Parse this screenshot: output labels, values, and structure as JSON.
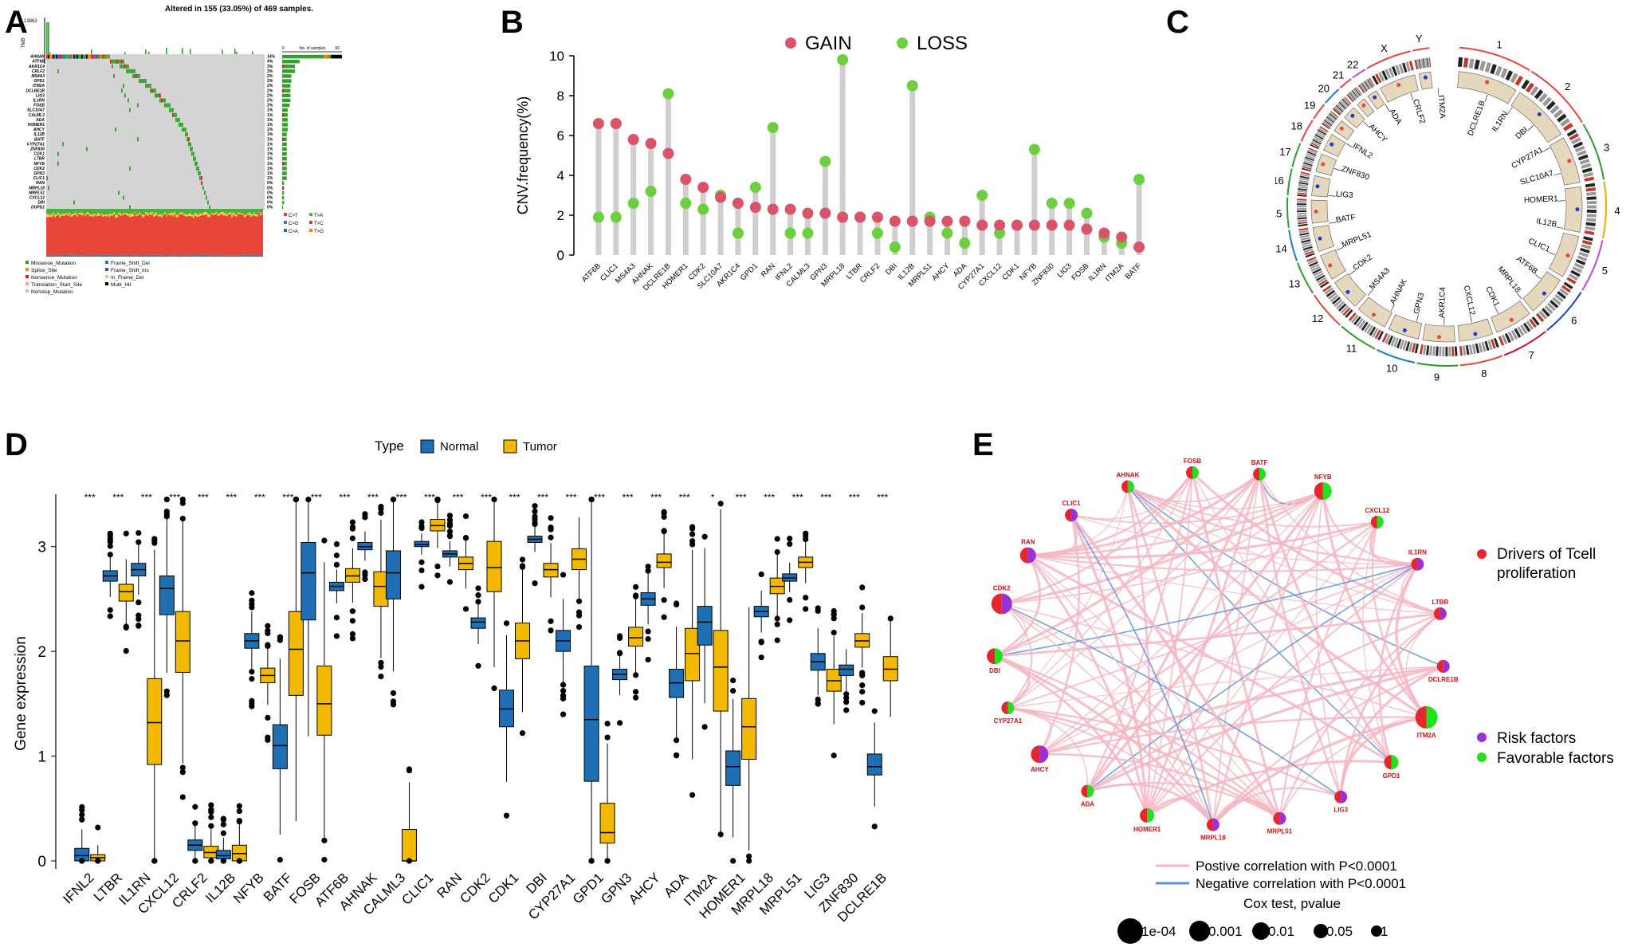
{
  "panels": {
    "a": {
      "letter": "A",
      "title": "Altered in 155 (33.05%) of 469 samples.",
      "tmb_max": "13862",
      "tmb_label": "TMB",
      "samples_label": "No. of samples",
      "samples_max": "65",
      "samples_zero": "0",
      "genes": [
        "AHNAK",
        "ATF6B",
        "AKR1C4",
        "CRLF2",
        "MS4A3",
        "GPD1",
        "ITM2A",
        "DCLRE1B",
        "LIG3",
        "IL1RN",
        "FOSB",
        "SLC10A7",
        "CALML3",
        "ADA",
        "HOMER1",
        "AHCY",
        "IL12B",
        "BATF",
        "CYP27A1",
        "ZNF830",
        "CDK1",
        "LTBR",
        "NFYB",
        "CDK2",
        "GPN3",
        "CLIC1",
        "RAN",
        "MRPL18",
        "MRPL51",
        "CXCL12",
        "DBI",
        "DUPD1"
      ],
      "percents": [
        "14%",
        "4%",
        "3%",
        "3%",
        "2%",
        "2%",
        "2%",
        "2%",
        "2%",
        "2%",
        "2%",
        "1%",
        "1%",
        "1%",
        "1%",
        "1%",
        "1%",
        "1%",
        "1%",
        "1%",
        "1%",
        "1%",
        "1%",
        "1%",
        "1%",
        "1%",
        "0%",
        "0%",
        "0%",
        "0%",
        "0%",
        "0%"
      ],
      "bar_counts": [
        65,
        19,
        14,
        14,
        10,
        10,
        9,
        9,
        9,
        9,
        8,
        6,
        6,
        6,
        6,
        6,
        5,
        5,
        5,
        5,
        5,
        5,
        5,
        5,
        5,
        5,
        2,
        2,
        2,
        2,
        2,
        1
      ],
      "snv_legend": [
        {
          "label": "C>T",
          "color": "#e8463a"
        },
        {
          "label": "T>A",
          "color": "#4daf4a"
        },
        {
          "label": "C>G",
          "color": "#377eb8"
        },
        {
          "label": "T>C",
          "color": "#a65628"
        },
        {
          "label": "C>A",
          "color": "#2b6cb0"
        },
        {
          "label": "T>G",
          "color": "#ff7f00"
        }
      ],
      "variant_legend": [
        {
          "label": "Missense_Mutation",
          "color": "#33a02c"
        },
        {
          "label": "Frame_Shift_Del",
          "color": "#1f78b4"
        },
        {
          "label": "Splice_Site",
          "color": "#ff7f00"
        },
        {
          "label": "Frame_Shift_Ins",
          "color": "#6a3d9a"
        },
        {
          "label": "Nonsense_Mutation",
          "color": "#e31a1c"
        },
        {
          "label": "In_Frame_Del",
          "color": "#fdbf6f"
        },
        {
          "label": "Translation_Start_Site",
          "color": "#fb9a99"
        },
        {
          "label": "Multi_Hit",
          "color": "#000000"
        },
        {
          "label": "Nonstop_Mutation",
          "color": "#a6cee3"
        }
      ]
    },
    "b": {
      "letter": "B",
      "legend_gain": "GAIN",
      "legend_loss": "LOSS",
      "gain_color": "#d9536a",
      "loss_color": "#6ccf3e"
    },
    "c": {
      "letter": "C",
      "chromosomes": [
        "1",
        "2",
        "3",
        "4",
        "5",
        "6",
        "7",
        "8",
        "9",
        "10",
        "11",
        "12",
        "13",
        "14",
        "15",
        "16",
        "17",
        "18",
        "19",
        "20",
        "21",
        "22",
        "X",
        "Y"
      ],
      "gene_labels": [
        "DCLRE1B",
        "IL1RN",
        "DBI",
        "CYP27A1",
        "SLC10A7",
        "HOMER1",
        "IL12B",
        "CLIC1",
        "ATF6B",
        "MRPL18",
        "CDK1",
        "CXCL12",
        "AKR1C4",
        "GPN3",
        "AHNAK",
        "MS4A3",
        "CDK2",
        "MRPL51",
        "BATF",
        "LIG3",
        "ZNF830",
        "IFNL2",
        "AHCY",
        "ADA",
        "CRLF2",
        "ITM2A"
      ]
    },
    "d": {
      "letter": "D",
      "legend_title": "Type",
      "legend_normal": "Normal",
      "legend_tumor": "Tumor",
      "normal_color": "#1f6fb4",
      "tumor_color": "#f2b900",
      "sig_label": "***",
      "special_sig": "*"
    },
    "e": {
      "letter": "E",
      "legend_drivers": "Drivers of Tcell proliferation",
      "legend_risk": "Risk factors",
      "legend_favorable": "Favorable factors",
      "pos_corr": "Postive correlation with P<0.0001",
      "neg_corr": "Negative correlation with P<0.0001",
      "cox_title": "Cox test, pvalue",
      "cox_values": [
        "1e-04",
        "0.001",
        "0.01",
        "0.05",
        "1"
      ],
      "driver_color": "#e8252a",
      "risk_color": "#9b30d9",
      "favorable_color": "#22e020",
      "pos_color": "#f4b6c2",
      "neg_color": "#5b8fd8",
      "nodes": [
        {
          "name": "AHNAK",
          "risk": false
        },
        {
          "name": "FOSB",
          "risk": false
        },
        {
          "name": "BATF",
          "risk": false
        },
        {
          "name": "NFYB",
          "risk": false
        },
        {
          "name": "CXCL12",
          "risk": false
        },
        {
          "name": "IL1RN",
          "risk": true
        },
        {
          "name": "LTBR",
          "risk": true
        },
        {
          "name": "DCLRE1B",
          "risk": true
        },
        {
          "name": "ITM2A",
          "risk": false
        },
        {
          "name": "GPD1",
          "risk": false
        },
        {
          "name": "LIG3",
          "risk": true
        },
        {
          "name": "MRPL51",
          "risk": true
        },
        {
          "name": "MRPL18",
          "risk": true
        },
        {
          "name": "HOMER1",
          "risk": false
        },
        {
          "name": "ADA",
          "risk": false
        },
        {
          "name": "AHCY",
          "risk": true
        },
        {
          "name": "CYP27A1",
          "risk": false
        },
        {
          "name": "DBI",
          "risk": false
        },
        {
          "name": "CDK2",
          "risk": true
        },
        {
          "name": "RAN",
          "risk": true
        },
        {
          "name": "CLIC1",
          "risk": true
        }
      ]
    }
  },
  "chart_data": [
    {
      "type": "bar",
      "title": "Altered in 155 (33.05%) of 469 samples.",
      "categories": [
        "AHNAK",
        "ATF6B",
        "AKR1C4",
        "CRLF2",
        "MS4A3",
        "GPD1",
        "ITM2A",
        "DCLRE1B",
        "LIG3",
        "IL1RN",
        "FOSB",
        "SLC10A7",
        "CALML3",
        "ADA",
        "HOMER1",
        "AHCY",
        "IL12B",
        "BATF",
        "CYP27A1",
        "ZNF830",
        "CDK1",
        "LTBR",
        "NFYB",
        "CDK2",
        "GPN3",
        "CLIC1",
        "RAN",
        "MRPL18",
        "MRPL51",
        "CXCL12",
        "DBI",
        "DUPD1"
      ],
      "values": [
        65,
        19,
        14,
        14,
        10,
        10,
        9,
        9,
        9,
        9,
        8,
        6,
        6,
        6,
        6,
        6,
        5,
        5,
        5,
        5,
        5,
        5,
        5,
        5,
        5,
        5,
        2,
        2,
        2,
        2,
        2,
        1
      ],
      "xlabel": "No. of samples",
      "xlim": [
        0,
        65
      ]
    },
    {
      "type": "scatter",
      "categories": [
        "ATF6B",
        "CLIC1",
        "MS4A3",
        "AHNAK",
        "DCLRE1B",
        "HOMER1",
        "CDK2",
        "SLC10A7",
        "AKR1C4",
        "GPD1",
        "RAN",
        "IFNL2",
        "CALML3",
        "GPN3",
        "MRPL18",
        "LTBR",
        "CRLF2",
        "DBI",
        "IL12B",
        "MRPL51",
        "AHCY",
        "ADA",
        "CYP27A1",
        "CXCL12",
        "CDK1",
        "NFYB",
        "ZNF830",
        "LIG3",
        "FOSB",
        "IL1RN",
        "ITM2A",
        "BATF"
      ],
      "series": [
        {
          "name": "GAIN",
          "values": [
            6.6,
            6.6,
            5.8,
            5.6,
            5.1,
            3.8,
            3.4,
            2.9,
            2.6,
            2.4,
            2.3,
            2.3,
            2.1,
            2.1,
            1.9,
            1.9,
            1.9,
            1.7,
            1.7,
            1.7,
            1.7,
            1.7,
            1.5,
            1.5,
            1.5,
            1.5,
            1.5,
            1.5,
            1.3,
            1.1,
            0.9,
            0.4
          ]
        },
        {
          "name": "LOSS",
          "values": [
            1.9,
            1.9,
            2.6,
            3.2,
            8.1,
            2.6,
            2.3,
            3.0,
            1.1,
            3.4,
            6.4,
            1.1,
            1.1,
            4.7,
            9.8,
            1.9,
            1.1,
            0.4,
            8.5,
            1.9,
            1.1,
            0.6,
            3.0,
            1.1,
            1.5,
            5.3,
            2.6,
            2.6,
            2.1,
            0.9,
            0.6,
            3.8
          ]
        }
      ],
      "ylabel": "CNV.frequency(%)",
      "ylim": [
        0,
        10
      ],
      "yticks": [
        0,
        2,
        4,
        6,
        8,
        10
      ],
      "grid": false
    },
    {
      "type": "box",
      "categories": [
        "IFNL2",
        "LTBR",
        "IL1RN",
        "CXCL12",
        "CRLF2",
        "IL12B",
        "NFYB",
        "BATF",
        "FOSB",
        "ATF6B",
        "AHNAK",
        "CALML3",
        "CLIC1",
        "RAN",
        "CDK2",
        "CDK1",
        "DBI",
        "CYP27A1",
        "GPD1",
        "GPN3",
        "AHCY",
        "ADA",
        "ITM2A",
        "HOMER1",
        "MRPL18",
        "MRPL51",
        "LIG3",
        "ZNF830",
        "DCLRE1B"
      ],
      "series": [
        {
          "name": "Normal",
          "medians": [
            0.05,
            2.72,
            2.78,
            2.6,
            0.15,
            0.05,
            2.1,
            1.1,
            2.75,
            2.62,
            3.0,
            2.75,
            3.02,
            2.93,
            2.28,
            1.45,
            3.07,
            2.1,
            1.35,
            1.78,
            2.5,
            1.7,
            2.28,
            0.9,
            2.38,
            2.7,
            1.9,
            1.83,
            0.9
          ],
          "q1": [
            0.0,
            2.67,
            2.72,
            2.35,
            0.1,
            0.02,
            2.03,
            0.88,
            2.3,
            2.58,
            2.97,
            2.5,
            3.0,
            2.9,
            2.22,
            1.28,
            3.04,
            2.0,
            0.76,
            1.73,
            2.44,
            1.56,
            2.06,
            0.72,
            2.33,
            2.67,
            1.82,
            1.77,
            0.82
          ],
          "q3": [
            0.12,
            2.77,
            2.84,
            2.72,
            0.2,
            0.1,
            2.17,
            1.3,
            3.04,
            2.66,
            3.04,
            2.96,
            3.05,
            2.96,
            2.32,
            1.63,
            3.1,
            2.2,
            1.86,
            1.83,
            2.56,
            1.83,
            2.43,
            1.05,
            2.43,
            2.74,
            1.98,
            1.87,
            1.02
          ]
        },
        {
          "name": "Tumor",
          "medians": [
            0.03,
            2.57,
            1.32,
            2.1,
            0.08,
            0.07,
            1.77,
            2.02,
            1.5,
            2.72,
            2.62,
            0.0,
            3.2,
            2.84,
            2.8,
            2.1,
            2.78,
            2.88,
            0.27,
            2.13,
            2.85,
            1.98,
            1.85,
            1.28,
            2.62,
            2.85,
            1.72,
            2.1,
            1.83
          ]
        },
        {
          "name": "Tumor_q1",
          "values": [
            0.0,
            2.48,
            0.92,
            1.8,
            0.03,
            0.0,
            1.7,
            1.58,
            1.2,
            2.66,
            2.43,
            0.0,
            3.15,
            2.78,
            2.57,
            1.93,
            2.71,
            2.78,
            0.17,
            2.05,
            2.8,
            1.72,
            1.43,
            0.97,
            2.55,
            2.8,
            1.62,
            2.04,
            1.72
          ]
        },
        {
          "name": "Tumor_q3",
          "values": [
            0.06,
            2.64,
            1.74,
            2.38,
            0.14,
            0.15,
            1.84,
            2.38,
            1.86,
            2.79,
            2.76,
            0.3,
            3.26,
            2.9,
            3.05,
            2.27,
            2.84,
            2.98,
            0.55,
            2.23,
            2.93,
            2.22,
            2.2,
            1.55,
            2.7,
            2.9,
            1.83,
            2.17,
            1.95
          ]
        }
      ],
      "ylabel": "Gene expression",
      "ylim": [
        0,
        3.5
      ],
      "yticks": [
        0,
        1,
        2,
        3
      ],
      "legend": "top"
    }
  ]
}
